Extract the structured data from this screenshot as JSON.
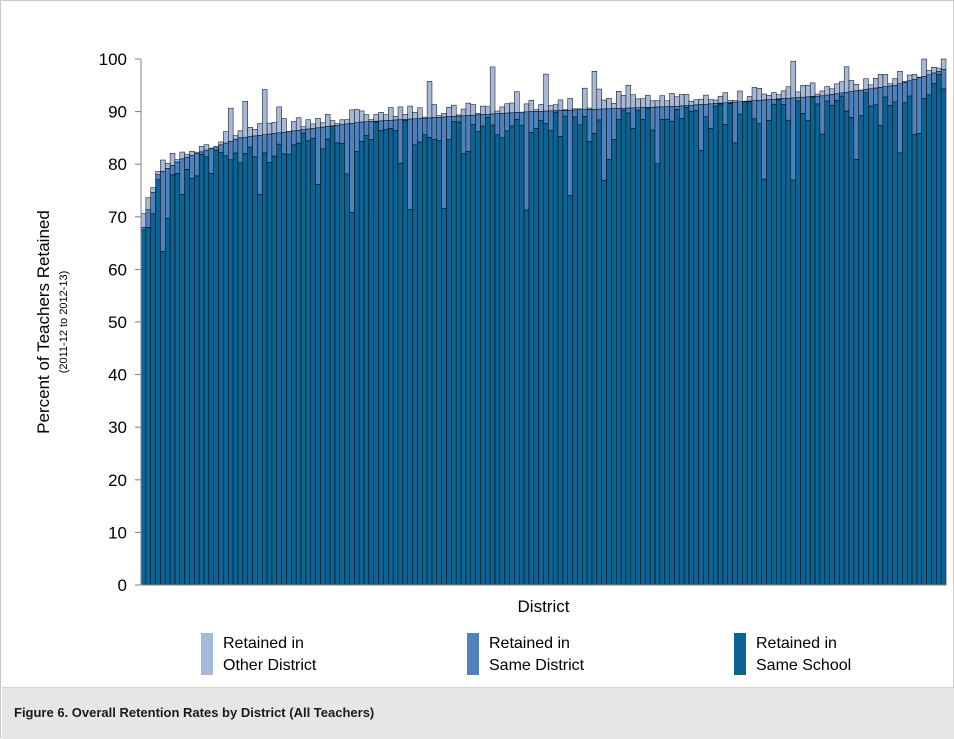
{
  "caption": "Figure 6. Overall Retention Rates by District (All Teachers)",
  "chart_data": {
    "type": "bar",
    "stacked": true,
    "sorted_by": "Retained in Same District (cumulative)",
    "xlabel": "District",
    "ylabel": "Percent of Teachers Retained",
    "ylabel_sub": "(2011-12 to 2012-13)",
    "ylim": [
      0,
      100
    ],
    "yticks": [
      0,
      10,
      20,
      30,
      40,
      50,
      60,
      70,
      80,
      90,
      100
    ],
    "grid": false,
    "legend_position": "bottom",
    "n_districts": 166,
    "anchors": {
      "same_district_cumulative": [
        [
          0,
          68
        ],
        [
          3,
          78
        ],
        [
          8,
          81
        ],
        [
          20,
          85
        ],
        [
          45,
          88
        ],
        [
          80,
          90
        ],
        [
          110,
          91
        ],
        [
          140,
          93
        ],
        [
          155,
          95
        ],
        [
          162,
          97
        ],
        [
          165,
          98
        ]
      ],
      "same_school_typical_gap": 5,
      "other_district_typical_gap": 2
    },
    "series": [
      {
        "name": "Retained in Same School",
        "color": "#0b6494"
      },
      {
        "name": "Retained in Same District",
        "color": "#4f81bd"
      },
      {
        "name": "Retained in Other District",
        "color": "#a6b9d6"
      }
    ],
    "legend": [
      {
        "line1": "Retained in",
        "line2": "Other District",
        "color": "#a6b9d6"
      },
      {
        "line1": "Retained in",
        "line2": "Same District",
        "color": "#4f81bd"
      },
      {
        "line1": "Retained in",
        "line2": "Same School",
        "color": "#0b6494"
      }
    ]
  }
}
